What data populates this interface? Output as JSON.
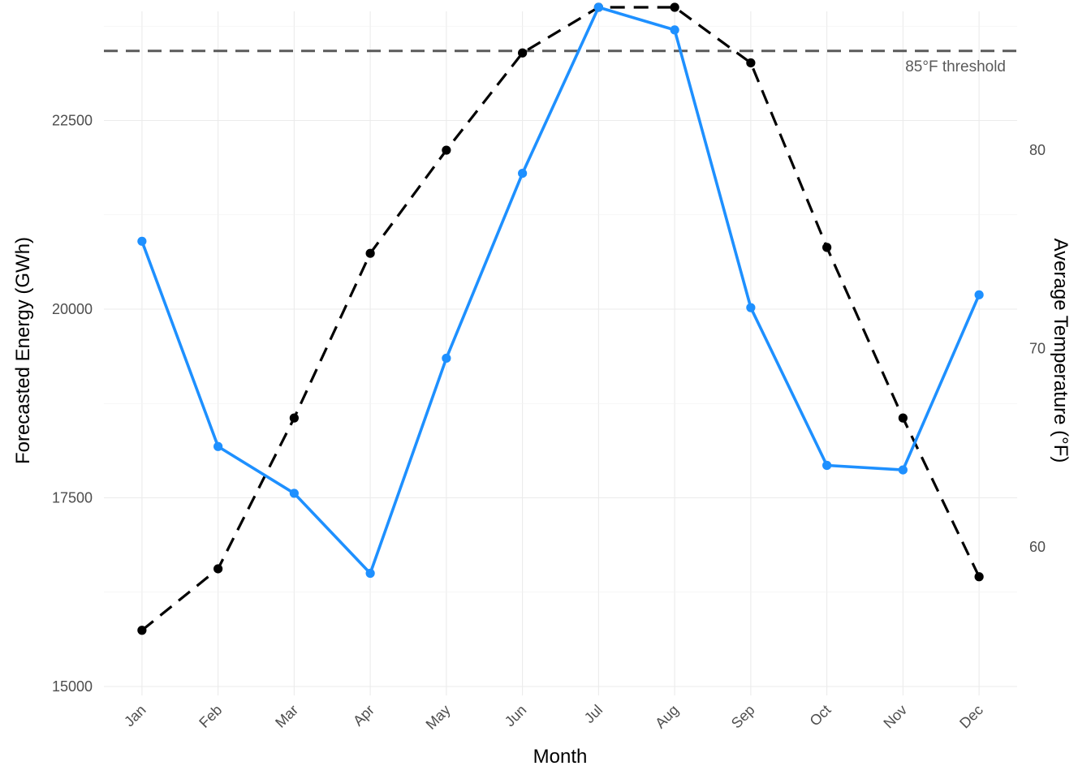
{
  "chart_data": {
    "type": "line",
    "categories": [
      "Jan",
      "Feb",
      "Mar",
      "Apr",
      "May",
      "Jun",
      "Jul",
      "Aug",
      "Sep",
      "Oct",
      "Nov",
      "Dec"
    ],
    "series": [
      {
        "axis": "left",
        "color": "#1E90FF",
        "style": "solid",
        "values": [
          20900,
          18180,
          17560,
          16500,
          19350,
          21800,
          24000,
          23700,
          20020,
          17930,
          17870,
          20190
        ]
      },
      {
        "axis": "right",
        "color": "#000000",
        "style": "dashed",
        "values": [
          55.8,
          58.9,
          66.5,
          74.8,
          80.0,
          84.9,
          87.2,
          87.2,
          84.4,
          75.1,
          66.5,
          58.5
        ]
      }
    ],
    "xlabel": "Month",
    "ylabel": "Forecasted Energy (GWh)",
    "y2label": "Average Temperature (°F)",
    "yticks": [
      15000,
      17500,
      20000,
      22500
    ],
    "y2ticks": [
      60,
      70,
      80
    ],
    "ylim": [
      15000,
      24000
    ],
    "y2lim": [
      54.4,
      87.2
    ],
    "reference_line": {
      "axis": "right",
      "value": 85,
      "label": "85°F threshold",
      "color": "#5a5a5a",
      "style": "dashed"
    },
    "grid": true,
    "legend": "none"
  }
}
